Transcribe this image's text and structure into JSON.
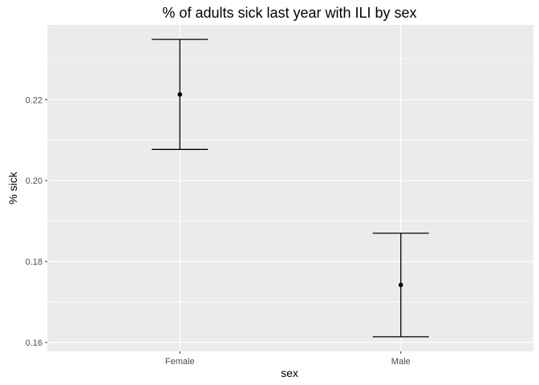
{
  "chart_data": {
    "type": "errorbar",
    "title": "% of adults sick last year with ILI by sex",
    "xlabel": "sex",
    "ylabel": "% sick",
    "categories": [
      "Female",
      "Male"
    ],
    "points": [
      {
        "category": "Female",
        "value": 0.2213,
        "lower": 0.2077,
        "upper": 0.2349
      },
      {
        "category": "Male",
        "value": 0.1742,
        "lower": 0.1614,
        "upper": 0.187
      }
    ],
    "yticks": [
      0.16,
      0.18,
      0.2,
      0.22
    ],
    "ytick_labels": [
      "0.16",
      "0.18",
      "0.20",
      "0.22"
    ],
    "ylim": [
      0.1578,
      0.2385
    ],
    "grid": true,
    "colors": {
      "panel": "#ebebeb",
      "grid": "#ffffff",
      "mark": "#000000",
      "tick_text": "#4d4d4d"
    }
  }
}
